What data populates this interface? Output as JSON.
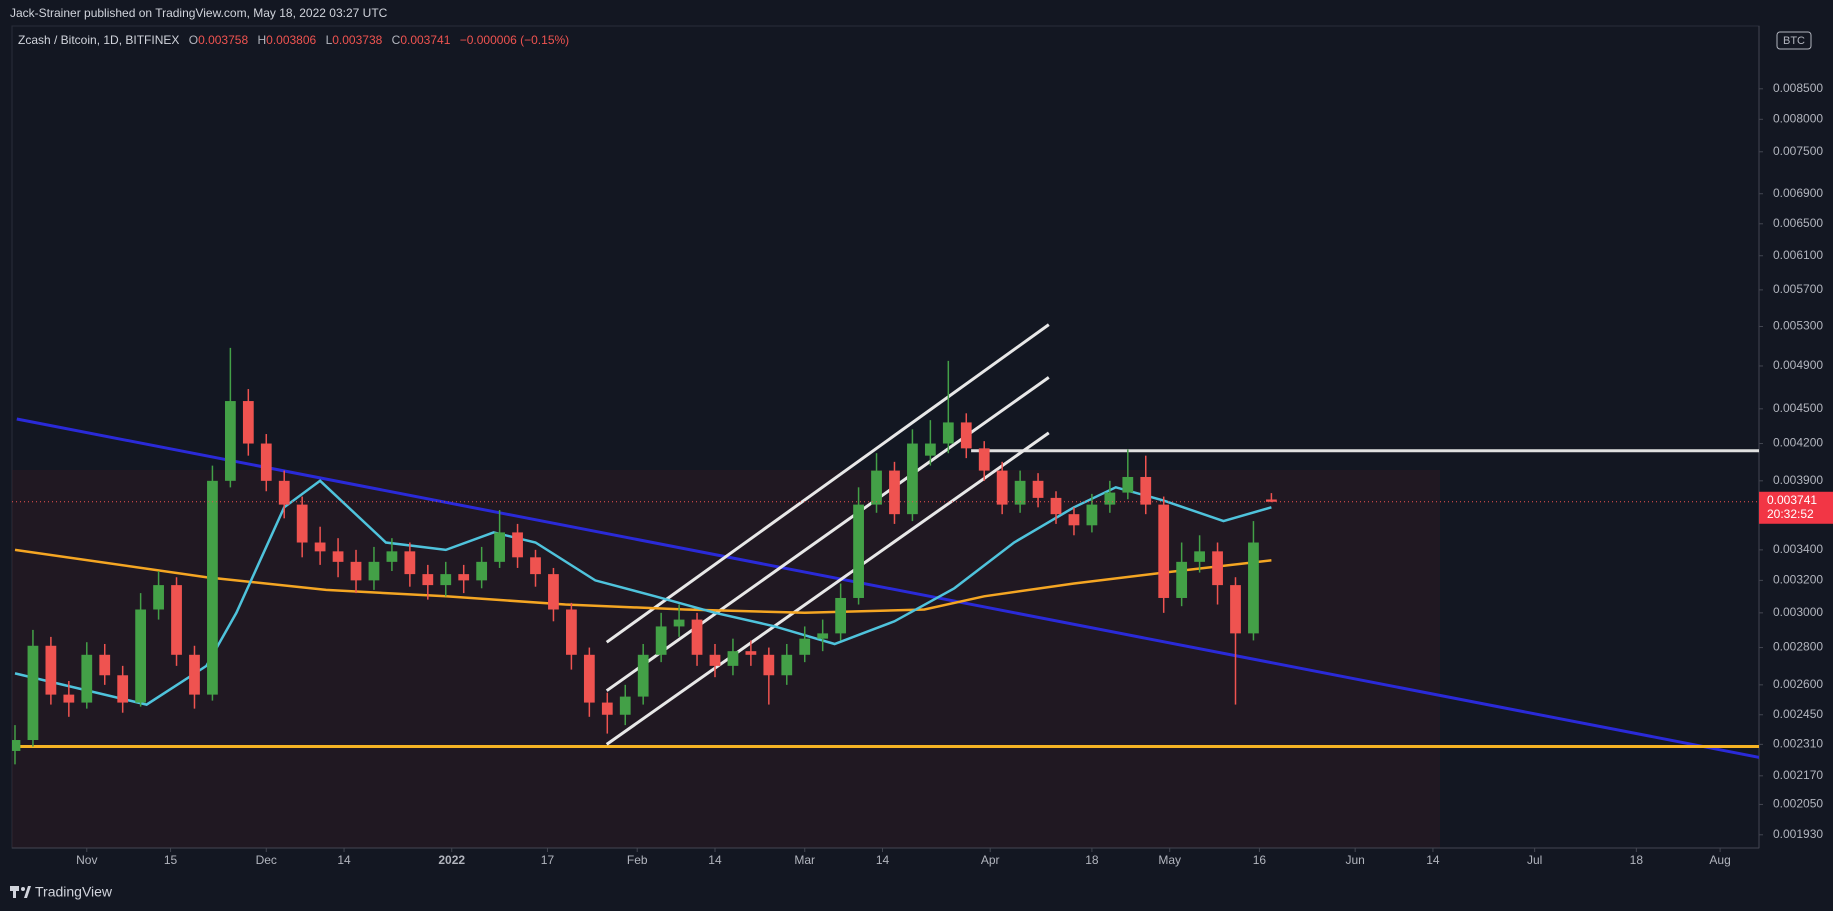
{
  "header": {
    "publisher": "Jack-Strainer published on TradingView.com, May 18, 2022 03:27 UTC"
  },
  "footer": {
    "brand": "TradingView"
  },
  "chart_data": {
    "type": "candlestick",
    "title": "Zcash / Bitcoin, 1D, BITFINEX",
    "ohlc_letters": [
      "O",
      "H",
      "L",
      "C"
    ],
    "change_label": "−0.000006 (−0.15%)",
    "countdown": "20:32:52",
    "currency": "BTC",
    "log_scale": true,
    "grid": false,
    "up_color": "#43a047",
    "down_color": "#ef5350",
    "xlim": [
      -12.5,
      279.5
    ],
    "ylim": [
      0.00188,
      0.00963
    ],
    "xticks": [
      {
        "value": 0,
        "label": "Nov"
      },
      {
        "value": 14,
        "label": "15"
      },
      {
        "value": 30,
        "label": "Dec"
      },
      {
        "value": 43,
        "label": "14"
      },
      {
        "value": 61,
        "label": "2022"
      },
      {
        "value": 77,
        "label": "17"
      },
      {
        "value": 92,
        "label": "Feb"
      },
      {
        "value": 105,
        "label": "14"
      },
      {
        "value": 120,
        "label": "Mar"
      },
      {
        "value": 133,
        "label": "14"
      },
      {
        "value": 151,
        "label": "Apr"
      },
      {
        "value": 168,
        "label": "18"
      },
      {
        "value": 181,
        "label": "May"
      },
      {
        "value": 196,
        "label": "16"
      },
      {
        "value": 212,
        "label": "Jun"
      },
      {
        "value": 225,
        "label": "14"
      },
      {
        "value": 242,
        "label": "Jul"
      },
      {
        "value": 259,
        "label": "18"
      },
      {
        "value": 273,
        "label": "Aug"
      }
    ],
    "yticks": [
      {
        "value": 0.00193,
        "label": "0.001930"
      },
      {
        "value": 0.00205,
        "label": "0.002050"
      },
      {
        "value": 0.00217,
        "label": "0.002170"
      },
      {
        "value": 0.00231,
        "label": "0.002310"
      },
      {
        "value": 0.00245,
        "label": "0.002450"
      },
      {
        "value": 0.0026,
        "label": "0.002600"
      },
      {
        "value": 0.0028,
        "label": "0.002800"
      },
      {
        "value": 0.003,
        "label": "0.003000"
      },
      {
        "value": 0.0032,
        "label": "0.003200"
      },
      {
        "value": 0.0034,
        "label": "0.003400"
      },
      {
        "value": 0.0039,
        "label": "0.003900"
      },
      {
        "value": 0.0042,
        "label": "0.004200"
      },
      {
        "value": 0.0045,
        "label": "0.004500"
      },
      {
        "value": 0.0049,
        "label": "0.004900"
      },
      {
        "value": 0.0053,
        "label": "0.005300"
      },
      {
        "value": 0.0057,
        "label": "0.005700"
      },
      {
        "value": 0.0061,
        "label": "0.006100"
      },
      {
        "value": 0.0065,
        "label": "0.006500"
      },
      {
        "value": 0.0069,
        "label": "0.006900"
      },
      {
        "value": 0.0075,
        "label": "0.007500"
      },
      {
        "value": 0.008,
        "label": "0.008000"
      },
      {
        "value": 0.0085,
        "label": "0.008500"
      }
    ],
    "x": [
      -12,
      -9,
      -6,
      -3,
      0,
      3,
      6,
      9,
      12,
      15,
      18,
      21,
      24,
      27,
      30,
      33,
      36,
      39,
      42,
      45,
      48,
      51,
      54,
      57,
      60,
      63,
      66,
      69,
      72,
      75,
      78,
      81,
      84,
      87,
      90,
      93,
      96,
      99,
      102,
      105,
      108,
      111,
      114,
      117,
      120,
      123,
      126,
      129,
      132,
      135,
      138,
      141,
      144,
      147,
      150,
      153,
      156,
      159,
      162,
      165,
      168,
      171,
      174,
      177,
      180,
      183,
      186,
      189,
      192,
      195,
      198
    ],
    "open": [
      0.00228,
      0.00233,
      0.00281,
      0.00255,
      0.00251,
      0.00276,
      0.00265,
      0.00251,
      0.00302,
      0.00317,
      0.00276,
      0.00255,
      0.0039,
      0.00457,
      0.0042,
      0.0039,
      0.00372,
      0.00345,
      0.00339,
      0.00332,
      0.0032,
      0.00332,
      0.00339,
      0.00324,
      0.00317,
      0.00324,
      0.0032,
      0.00332,
      0.00352,
      0.00335,
      0.00324,
      0.00302,
      0.00276,
      0.00251,
      0.00245,
      0.00254,
      0.00276,
      0.00292,
      0.00296,
      0.00276,
      0.0027,
      0.00278,
      0.00276,
      0.00265,
      0.00276,
      0.00285,
      0.00288,
      0.00309,
      0.00372,
      0.00398,
      0.00365,
      0.0041,
      0.0042,
      0.00438,
      0.00416,
      0.00398,
      0.00372,
      0.0039,
      0.00377,
      0.00365,
      0.00357,
      0.00372,
      0.00381,
      0.00393,
      0.00372,
      0.00309,
      0.00332,
      0.00339,
      0.00317,
      0.00288,
      0.003758
    ],
    "high": [
      0.0024,
      0.0029,
      0.00286,
      0.00262,
      0.00283,
      0.00282,
      0.0027,
      0.00312,
      0.00326,
      0.00322,
      0.00281,
      0.00402,
      0.00508,
      0.00468,
      0.00428,
      0.00398,
      0.00378,
      0.00356,
      0.00348,
      0.0034,
      0.00342,
      0.00348,
      0.00345,
      0.0033,
      0.00332,
      0.0033,
      0.00342,
      0.00368,
      0.00358,
      0.0034,
      0.00328,
      0.00306,
      0.0028,
      0.00256,
      0.0026,
      0.00282,
      0.003,
      0.00305,
      0.003,
      0.00282,
      0.00285,
      0.00284,
      0.0028,
      0.00282,
      0.00292,
      0.00296,
      0.00318,
      0.00385,
      0.00412,
      0.00405,
      0.00432,
      0.0044,
      0.00495,
      0.00446,
      0.00422,
      0.00405,
      0.00398,
      0.00396,
      0.00382,
      0.0037,
      0.0038,
      0.0039,
      0.00415,
      0.0041,
      0.00378,
      0.00345,
      0.0035,
      0.00345,
      0.00322,
      0.0036,
      0.003806
    ],
    "low": [
      0.00222,
      0.0023,
      0.0025,
      0.00244,
      0.00248,
      0.0026,
      0.00246,
      0.00249,
      0.00296,
      0.0027,
      0.00248,
      0.00252,
      0.00385,
      0.0041,
      0.00382,
      0.00362,
      0.00335,
      0.0033,
      0.00322,
      0.00312,
      0.00314,
      0.00326,
      0.00316,
      0.00308,
      0.0031,
      0.00312,
      0.00315,
      0.00328,
      0.00328,
      0.00316,
      0.00295,
      0.00268,
      0.00244,
      0.00236,
      0.0024,
      0.0025,
      0.00272,
      0.00286,
      0.0027,
      0.00264,
      0.00265,
      0.0027,
      0.0025,
      0.0026,
      0.00272,
      0.00278,
      0.00284,
      0.00305,
      0.00366,
      0.00358,
      0.0036,
      0.00402,
      0.00412,
      0.00408,
      0.0039,
      0.00365,
      0.00366,
      0.0037,
      0.00358,
      0.0035,
      0.00352,
      0.00366,
      0.00376,
      0.00365,
      0.003,
      0.00304,
      0.00325,
      0.00305,
      0.0025,
      0.00284,
      0.003738
    ],
    "close": [
      0.00233,
      0.00281,
      0.00255,
      0.00251,
      0.00276,
      0.00265,
      0.00251,
      0.00302,
      0.00317,
      0.00276,
      0.00255,
      0.0039,
      0.00457,
      0.0042,
      0.0039,
      0.00372,
      0.00345,
      0.00339,
      0.00332,
      0.0032,
      0.00332,
      0.00339,
      0.00324,
      0.00317,
      0.00324,
      0.0032,
      0.00332,
      0.00352,
      0.00335,
      0.00324,
      0.00302,
      0.00276,
      0.00251,
      0.00245,
      0.00254,
      0.00276,
      0.00292,
      0.00296,
      0.00276,
      0.0027,
      0.00278,
      0.00276,
      0.00265,
      0.00276,
      0.00285,
      0.00288,
      0.00309,
      0.00372,
      0.00398,
      0.00365,
      0.0042,
      0.0042,
      0.00438,
      0.00416,
      0.00398,
      0.00372,
      0.0039,
      0.00377,
      0.00365,
      0.00357,
      0.00372,
      0.00381,
      0.00393,
      0.00372,
      0.00309,
      0.00332,
      0.00339,
      0.00317,
      0.00288,
      0.00345,
      0.003741
    ],
    "series": [
      {
        "color": "#f5a623",
        "x": [
          -12,
          20,
          40,
          60,
          80,
          100,
          120,
          140,
          150,
          165,
          180,
          198
        ],
        "values": [
          0.0034,
          0.00322,
          0.00314,
          0.0031,
          0.00305,
          0.00302,
          0.003,
          0.00302,
          0.0031,
          0.00318,
          0.00325,
          0.00333
        ]
      },
      {
        "color": "#4fc3dc",
        "x": [
          -12,
          10,
          20,
          25,
          33,
          39,
          50,
          60,
          68,
          75,
          85,
          95,
          105,
          115,
          125,
          135,
          145,
          155,
          165,
          172,
          180,
          190,
          198
        ],
        "values": [
          0.00266,
          0.0025,
          0.0027,
          0.003,
          0.0037,
          0.0039,
          0.00345,
          0.0034,
          0.00352,
          0.00345,
          0.0032,
          0.0031,
          0.003,
          0.00292,
          0.00282,
          0.00295,
          0.00315,
          0.00345,
          0.0037,
          0.00385,
          0.00375,
          0.0036,
          0.0037
        ]
      }
    ],
    "drawings": [
      {
        "color": "#2a2ad8",
        "x": [
          -11.7,
          279.7
        ],
        "values": [
          0.00441,
          0.00225
        ]
      },
      {
        "color": "#f5b324",
        "x": [
          -12.5,
          279.5
        ],
        "values": [
          0.0023,
          0.0023
        ]
      },
      {
        "color": "#e0e0e0",
        "x": [
          147.8,
          279.5
        ],
        "values": [
          0.00414,
          0.00414
        ]
      },
      {
        "color": "#e8e8e8",
        "x": [
          86.9,
          160.8
        ],
        "values": [
          0.00231,
          0.00429
        ]
      },
      {
        "color": "#e8e8e8",
        "x": [
          86.9,
          160.8
        ],
        "values": [
          0.00257,
          0.00479
        ]
      },
      {
        "color": "#e8e8e8",
        "x": [
          86.9,
          160.8
        ],
        "values": [
          0.00283,
          0.00532
        ]
      }
    ]
  }
}
